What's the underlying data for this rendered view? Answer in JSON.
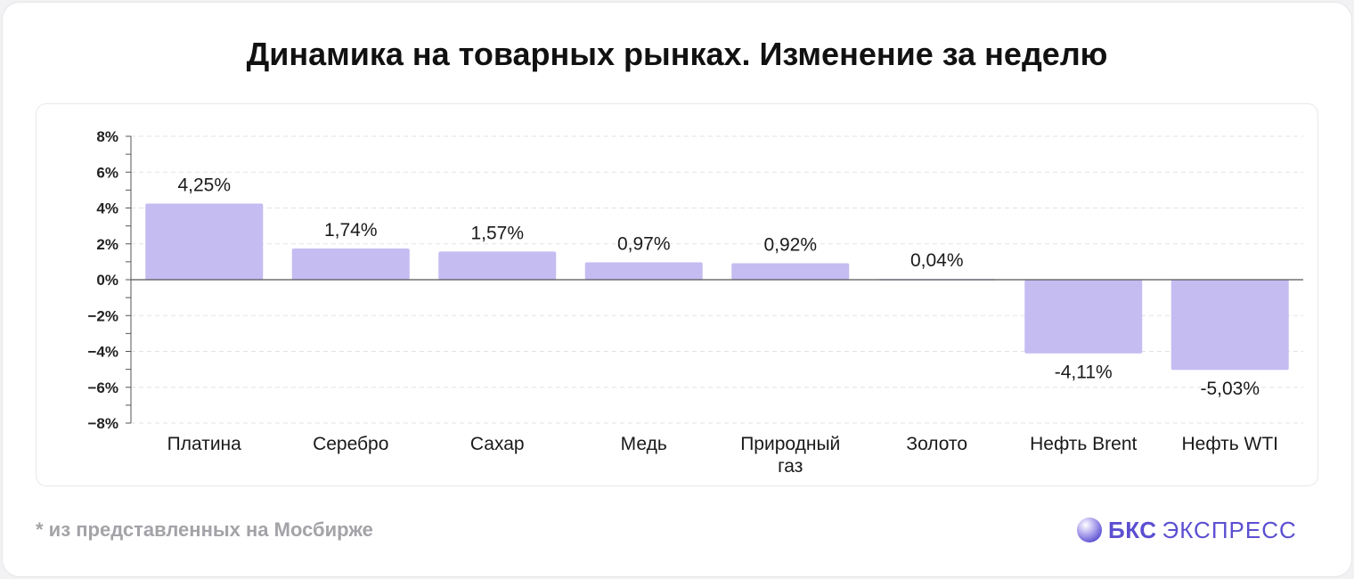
{
  "title": "Динамика на товарных рынках. Изменение за неделю",
  "footnote": "* из представленных на Мосбирже",
  "brand": {
    "name": "БКС",
    "sub": "ЭКСПРЕСС"
  },
  "colors": {
    "bar": "#c5bcf2",
    "axis": "#555555",
    "grid": "#e3e3e3",
    "brand": "#5b4fd1",
    "footnote": "#a3a3a8"
  },
  "chart_data": {
    "type": "bar",
    "categories": [
      "Платина",
      "Серебро",
      "Сахар",
      "Медь",
      "Природный газ",
      "Золото",
      "Нефть Brent",
      "Нефть WTI"
    ],
    "category_lines": [
      [
        "Платина"
      ],
      [
        "Серебро"
      ],
      [
        "Сахар"
      ],
      [
        "Медь"
      ],
      [
        "Природный",
        "газ"
      ],
      [
        "Золото"
      ],
      [
        "Нефть Brent"
      ],
      [
        "Нефть WTI"
      ]
    ],
    "values": [
      4.25,
      1.74,
      1.57,
      0.97,
      0.92,
      0.04,
      -4.11,
      -5.03
    ],
    "value_labels": [
      "4,25%",
      "1,74%",
      "1,57%",
      "0,97%",
      "0,92%",
      "0,04%",
      "-4,11%",
      "-5,03%"
    ],
    "ylim": [
      -8,
      8
    ],
    "yticks": [
      8,
      6,
      4,
      2,
      0,
      -2,
      -4,
      -6,
      -8
    ],
    "ytick_labels": [
      "8%",
      "6%",
      "4%",
      "2%",
      "0%",
      "−2%",
      "−4%",
      "−6%",
      "−8%"
    ],
    "grid": true,
    "xlabel": "",
    "ylabel": ""
  }
}
